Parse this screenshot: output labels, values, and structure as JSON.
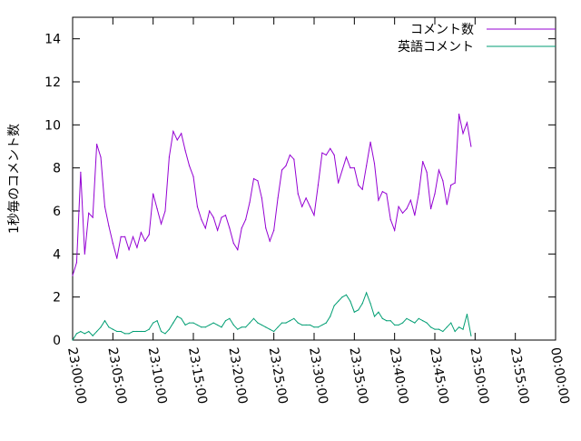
{
  "chart_data": {
    "type": "line",
    "title": "",
    "xlabel": "",
    "ylabel": "1秒毎のコメント数",
    "ylim": [
      0,
      15
    ],
    "xlim": [
      "23:00:00",
      "00:00:00"
    ],
    "x_unit_step_seconds": 30,
    "x_ticks": [
      "23:00:00",
      "23:05:00",
      "23:10:00",
      "23:15:00",
      "23:20:00",
      "23:25:00",
      "23:30:00",
      "23:35:00",
      "23:40:00",
      "23:45:00",
      "23:50:00",
      "23:55:00",
      "00:00:00"
    ],
    "y_ticks": [
      0,
      2,
      4,
      6,
      8,
      10,
      12,
      14
    ],
    "grid": false,
    "legend_position": "top-right",
    "series": [
      {
        "name": "コメント数",
        "color": "#9400d3",
        "values": [
          3.0,
          3.6,
          7.8,
          4.0,
          5.9,
          5.7,
          9.1,
          8.5,
          6.2,
          5.3,
          4.5,
          3.8,
          4.8,
          4.8,
          4.2,
          4.8,
          4.3,
          5.0,
          4.6,
          4.9,
          6.8,
          6.1,
          5.4,
          6.0,
          8.5,
          9.7,
          9.3,
          9.6,
          8.8,
          8.1,
          7.6,
          6.2,
          5.6,
          5.2,
          6.0,
          5.7,
          5.1,
          5.7,
          5.8,
          5.2,
          4.5,
          4.2,
          5.2,
          5.6,
          6.4,
          7.5,
          7.4,
          6.6,
          5.2,
          4.6,
          5.1,
          6.6,
          7.9,
          8.1,
          8.6,
          8.4,
          6.8,
          6.2,
          6.6,
          6.2,
          5.8,
          7.2,
          8.7,
          8.6,
          8.9,
          8.6,
          7.3,
          7.9,
          8.5,
          8.0,
          8.0,
          7.2,
          7.0,
          8.1,
          9.2,
          8.2,
          6.5,
          6.9,
          6.8,
          5.6,
          5.1,
          6.2,
          5.9,
          6.1,
          6.5,
          5.8,
          6.8,
          8.3,
          7.8,
          6.1,
          6.8,
          7.9,
          7.4,
          6.3,
          7.2,
          7.3,
          10.5,
          9.6,
          10.1,
          9.0
        ]
      },
      {
        "name": "英語コメント",
        "color": "#009e73",
        "values": [
          0.0,
          0.3,
          0.4,
          0.3,
          0.4,
          0.2,
          0.4,
          0.6,
          0.9,
          0.6,
          0.5,
          0.4,
          0.4,
          0.3,
          0.3,
          0.4,
          0.4,
          0.4,
          0.4,
          0.5,
          0.8,
          0.9,
          0.4,
          0.3,
          0.5,
          0.8,
          1.1,
          1.0,
          0.7,
          0.8,
          0.8,
          0.7,
          0.6,
          0.6,
          0.7,
          0.8,
          0.7,
          0.6,
          0.9,
          1.0,
          0.7,
          0.5,
          0.6,
          0.6,
          0.8,
          1.0,
          0.8,
          0.7,
          0.6,
          0.5,
          0.4,
          0.6,
          0.8,
          0.8,
          0.9,
          1.0,
          0.8,
          0.7,
          0.7,
          0.7,
          0.6,
          0.6,
          0.7,
          0.8,
          1.1,
          1.6,
          1.8,
          2.0,
          2.1,
          1.8,
          1.3,
          1.4,
          1.7,
          2.2,
          1.7,
          1.1,
          1.3,
          1.0,
          0.9,
          0.9,
          0.7,
          0.7,
          0.8,
          1.0,
          0.9,
          0.8,
          1.0,
          0.9,
          0.8,
          0.6,
          0.5,
          0.5,
          0.4,
          0.6,
          0.8,
          0.4,
          0.6,
          0.5,
          1.2,
          0.2
        ]
      }
    ]
  }
}
